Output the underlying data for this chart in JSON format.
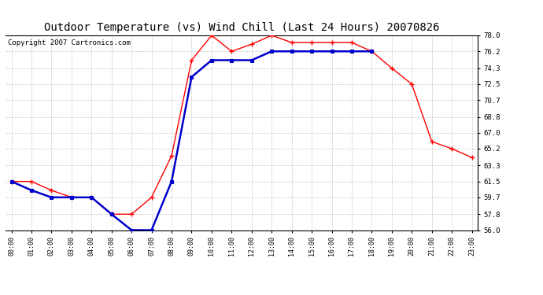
{
  "title": "Outdoor Temperature (vs) Wind Chill (Last 24 Hours) 20070826",
  "copyright": "Copyright 2007 Cartronics.com",
  "x_labels": [
    "00:00",
    "01:00",
    "02:00",
    "03:00",
    "04:00",
    "05:00",
    "06:00",
    "07:00",
    "08:00",
    "09:00",
    "10:00",
    "11:00",
    "12:00",
    "13:00",
    "14:00",
    "15:00",
    "16:00",
    "17:00",
    "18:00",
    "19:00",
    "20:00",
    "21:00",
    "22:00",
    "23:00"
  ],
  "temp_data": [
    61.5,
    61.5,
    60.5,
    59.7,
    59.7,
    57.8,
    57.8,
    59.7,
    64.4,
    75.2,
    78.0,
    76.2,
    77.0,
    78.0,
    77.2,
    77.2,
    77.2,
    77.2,
    76.2,
    74.3,
    72.5,
    66.0,
    65.2,
    64.2
  ],
  "windchill_data": [
    61.5,
    60.5,
    59.7,
    59.7,
    59.7,
    57.8,
    56.0,
    56.0,
    61.5,
    73.3,
    75.2,
    75.2,
    75.2,
    76.2,
    76.2,
    76.2,
    76.2,
    76.2,
    76.2,
    null,
    null,
    null,
    null,
    null
  ],
  "temp_color": "#FF0000",
  "windchill_color": "#0000CC",
  "bg_color": "#FFFFFF",
  "grid_color": "#BBBBBB",
  "ylim": [
    56.0,
    78.0
  ],
  "yticks": [
    56.0,
    57.8,
    59.7,
    61.5,
    63.3,
    65.2,
    67.0,
    68.8,
    70.7,
    72.5,
    74.3,
    76.2,
    78.0
  ],
  "title_fontsize": 10,
  "copyright_fontsize": 6.5
}
